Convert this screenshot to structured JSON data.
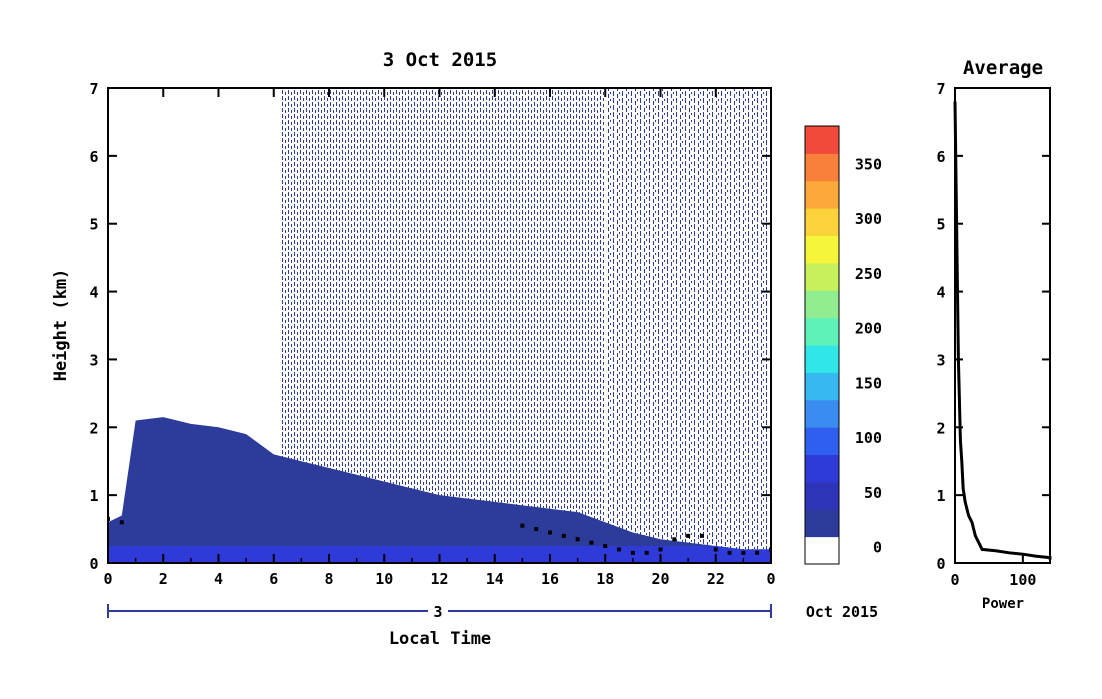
{
  "chart_data": [
    {
      "type": "heatmap",
      "title": "3 Oct 2015",
      "xlabel": "Local Time",
      "ylabel": "Height (km)",
      "x_ticks": [
        "0",
        "2",
        "4",
        "6",
        "8",
        "10",
        "12",
        "14",
        "16",
        "18",
        "20",
        "22",
        "0"
      ],
      "y_ticks": [
        "0",
        "1",
        "2",
        "3",
        "4",
        "5",
        "6",
        "7"
      ],
      "xlim": [
        0,
        24
      ],
      "ylim": [
        0,
        7
      ],
      "date_axis": {
        "day_label": "3",
        "month_label": "Oct 2015"
      },
      "colorbar": {
        "ticks": [
          "0",
          "50",
          "100",
          "150",
          "200",
          "250",
          "300",
          "350"
        ],
        "colors": [
          "#ffffff",
          "#2d3c9a",
          "#2e34b8",
          "#2e3bd9",
          "#2f5ff0",
          "#3a8cf0",
          "#38b8f0",
          "#30e6e6",
          "#5ff2b8",
          "#90ee90",
          "#c8f05a",
          "#f5f53a",
          "#fcd23a",
          "#fda83a",
          "#f9803a",
          "#f24a3a"
        ]
      },
      "boundary_layer_height_km": {
        "x": [
          0,
          0.5,
          1,
          2,
          3,
          4,
          5,
          6,
          7,
          8,
          9,
          10,
          11,
          12,
          13,
          14,
          15,
          16,
          17,
          18,
          19,
          20,
          21,
          22,
          23,
          24
        ],
        "top": [
          0.6,
          0.7,
          2.1,
          2.15,
          2.05,
          2.0,
          1.9,
          1.6,
          1.5,
          1.4,
          1.3,
          1.2,
          1.1,
          1.0,
          0.95,
          0.9,
          0.85,
          0.8,
          0.75,
          0.6,
          0.45,
          0.35,
          0.3,
          0.25,
          0.2,
          0.2
        ]
      },
      "black_marker_trace": {
        "x": [
          0,
          0.5,
          15.0,
          15.5,
          16.0,
          16.5,
          17.0,
          17.5,
          18.0,
          18.5,
          19.0,
          19.5,
          20.0,
          20.5,
          21.0,
          21.5,
          22.0,
          22.5,
          23.0,
          23.5,
          24.0
        ],
        "y": [
          0.65,
          0.6,
          0.55,
          0.5,
          0.45,
          0.4,
          0.35,
          0.3,
          0.25,
          0.2,
          0.15,
          0.15,
          0.2,
          0.35,
          0.4,
          0.4,
          0.2,
          0.15,
          0.15,
          0.15,
          0.2
        ]
      }
    },
    {
      "type": "line",
      "title": "Average",
      "xlabel": "Power",
      "ylabel": "",
      "x_ticks": [
        "0",
        "100"
      ],
      "y_ticks": [
        "0",
        "1",
        "2",
        "3",
        "4",
        "5",
        "6",
        "7"
      ],
      "xlim": [
        0,
        140
      ],
      "ylim": [
        0,
        7
      ],
      "series": [
        {
          "x": [
            0,
            5,
            8,
            10,
            12,
            15,
            20,
            25,
            30,
            40,
            60,
            80,
            100,
            120,
            140,
            145
          ],
          "y": [
            6.8,
            3.0,
            1.8,
            1.5,
            1.1,
            0.9,
            0.7,
            0.6,
            0.4,
            0.2,
            0.18,
            0.15,
            0.13,
            0.1,
            0.08,
            0.05
          ]
        }
      ]
    }
  ]
}
